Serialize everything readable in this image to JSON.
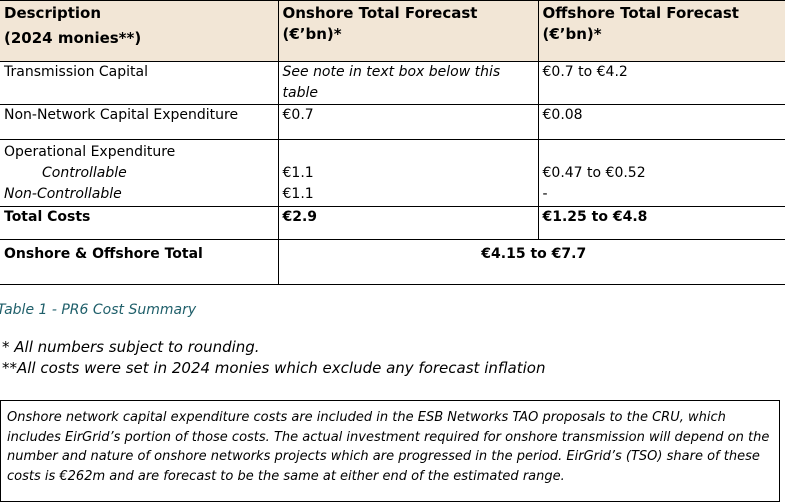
{
  "table": {
    "header": {
      "col1_line1": "Description",
      "col1_line2": "(2024 monies**)",
      "col2_line1": "Onshore Total Forecast",
      "col2_line2": "(€’bn)*",
      "col3_line1": "Offshore Total Forecast",
      "col3_line2": "(€’bn)*"
    },
    "rows": [
      {
        "label": "Transmission Capital",
        "onshore": "See note in text box below this table",
        "offshore": "€0.7 to €4.2"
      },
      {
        "label": "Non-Network Capital Expenditure",
        "onshore": "€0.7",
        "offshore": "€0.08"
      },
      {
        "label": "Operational Expenditure",
        "sub1": "Controllable",
        "sub2": "Non-Controllable",
        "onshore_sub1": "€1.1",
        "onshore_sub2": "€1.1",
        "offshore_sub1": "€0.47 to €0.52",
        "offshore_sub2": "-"
      },
      {
        "label": "Total Costs",
        "onshore": "€2.9",
        "offshore": "€1.25 to €4.8"
      },
      {
        "label": "Onshore & Offshore Total",
        "combined": "€4.15 to €7.7"
      }
    ]
  },
  "caption": "Table 1 - PR6 Cost Summary",
  "notes": [
    "* All numbers subject to rounding.",
    "**All costs were set in 2024 monies which exclude any forecast inflation"
  ],
  "textbox": "Onshore network capital expenditure costs are included in the ESB Networks TAO proposals to the CRU, which includes EirGrid’s portion of those costs. The actual investment required for onshore transmission will depend on the number and nature of onshore networks projects which are progressed in the period. EirGrid’s (TSO) share of these costs is €262m and are forecast to be the same at either end of the estimated range."
}
